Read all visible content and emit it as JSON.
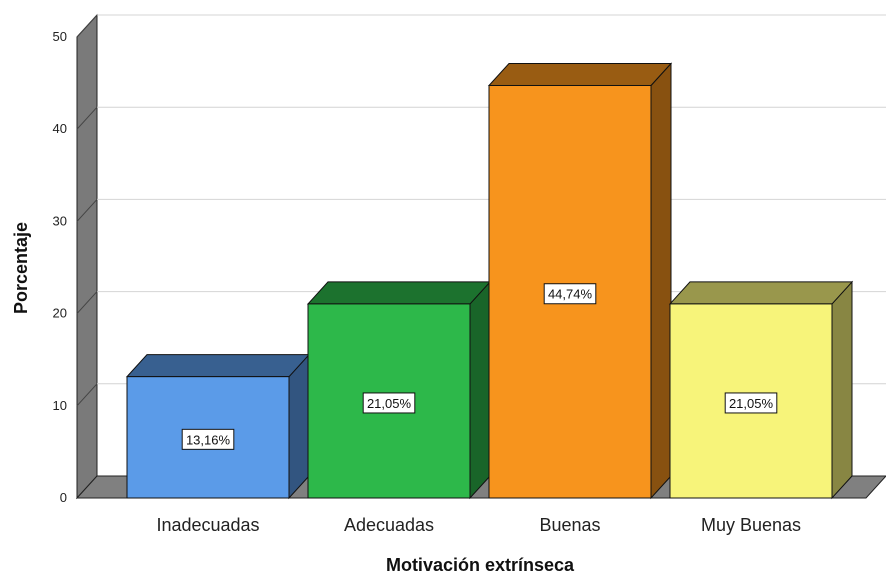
{
  "chart_data": {
    "type": "bar",
    "style": "3d",
    "categories": [
      "Inadecuadas",
      "Adecuadas",
      "Buenas",
      "Muy Buenas"
    ],
    "values": [
      13.16,
      21.05,
      44.74,
      21.05
    ],
    "data_labels": [
      "13,16%",
      "21,05%",
      "44,74%",
      "21,05%"
    ],
    "colors": [
      "#5b9be8",
      "#2db84a",
      "#f7941d",
      "#f7f47a"
    ],
    "xlabel": "Motivación extrínseca",
    "ylabel": "Porcentaje",
    "ylim": [
      0,
      50
    ],
    "yticks": [
      "0",
      "10",
      "20",
      "30",
      "40",
      "50"
    ],
    "grid": true,
    "legend": "none"
  }
}
